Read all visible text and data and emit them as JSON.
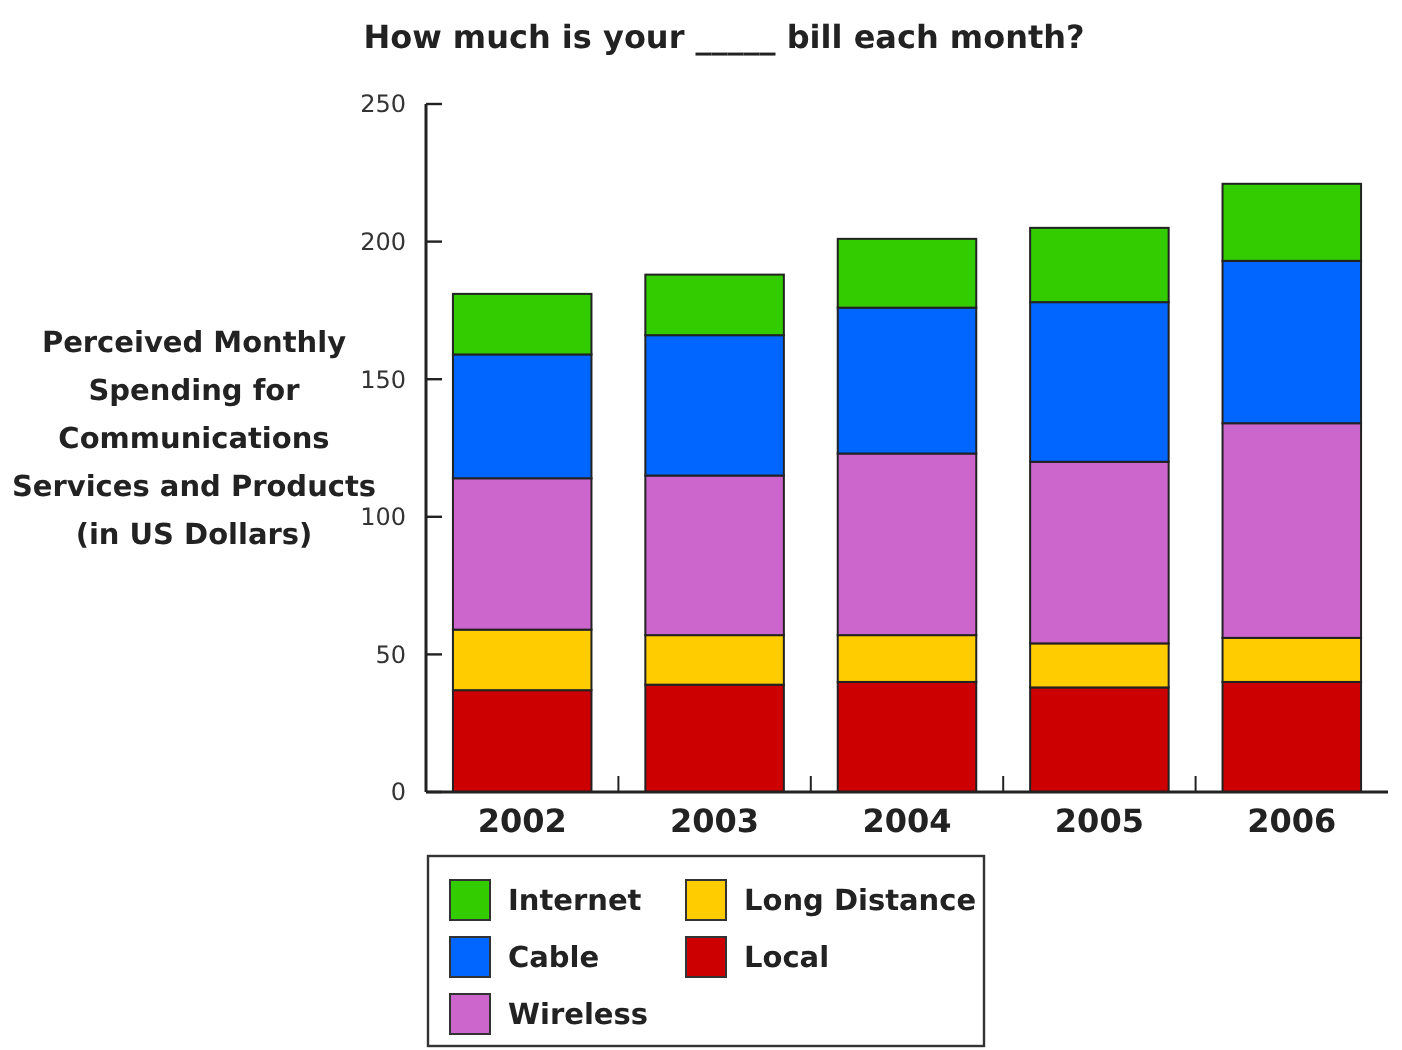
{
  "chart_data": {
    "type": "bar",
    "title": "How much is your _____ bill each month?",
    "ylabel": "Perceived Monthly Spending for Communications Services and Products (in US Dollars)",
    "categories": [
      "2002",
      "2003",
      "2004",
      "2005",
      "2006"
    ],
    "stacked": true,
    "ylim": [
      0,
      250
    ],
    "yticks": [
      0,
      50,
      100,
      150,
      200,
      250
    ],
    "grid": false,
    "legend": "bottom",
    "series": [
      {
        "name": "Local",
        "color": "#cc0000",
        "values": [
          37,
          39,
          40,
          38,
          40
        ]
      },
      {
        "name": "Long Distance",
        "color": "#ffcc00",
        "values": [
          22,
          18,
          17,
          16,
          16
        ]
      },
      {
        "name": "Wireless",
        "color": "#cc66cc",
        "values": [
          55,
          58,
          66,
          66,
          78
        ]
      },
      {
        "name": "Cable",
        "color": "#0066ff",
        "values": [
          45,
          51,
          53,
          58,
          59
        ]
      },
      {
        "name": "Internet",
        "color": "#33cc00",
        "values": [
          22,
          22,
          25,
          27,
          28
        ]
      }
    ]
  }
}
